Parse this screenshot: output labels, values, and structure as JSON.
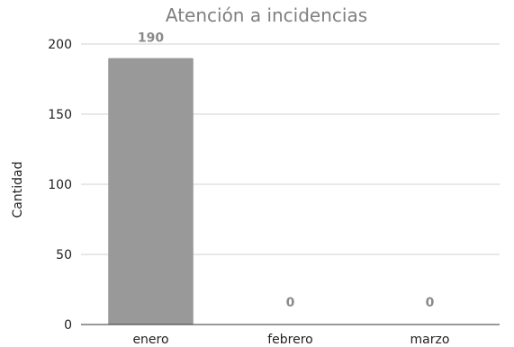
{
  "chart_data": {
    "type": "bar",
    "title": "Atención a incidencias",
    "xlabel": "",
    "ylabel": "Cantidad",
    "categories": [
      "enero",
      "febrero",
      "marzo"
    ],
    "values": [
      190,
      0,
      0
    ],
    "data_labels": [
      "190",
      "0",
      "0"
    ],
    "ylim": [
      0,
      200
    ],
    "yticks": [
      0,
      50,
      100,
      150,
      200
    ],
    "ytick_labels": [
      "0",
      "50",
      "100",
      "150",
      "200"
    ],
    "grid": true,
    "legend": "none",
    "colors": {
      "bar": "#999999",
      "title": "#7f7f7f",
      "data_label": "#8a8a8a",
      "grid": "#d0d0d0"
    }
  }
}
